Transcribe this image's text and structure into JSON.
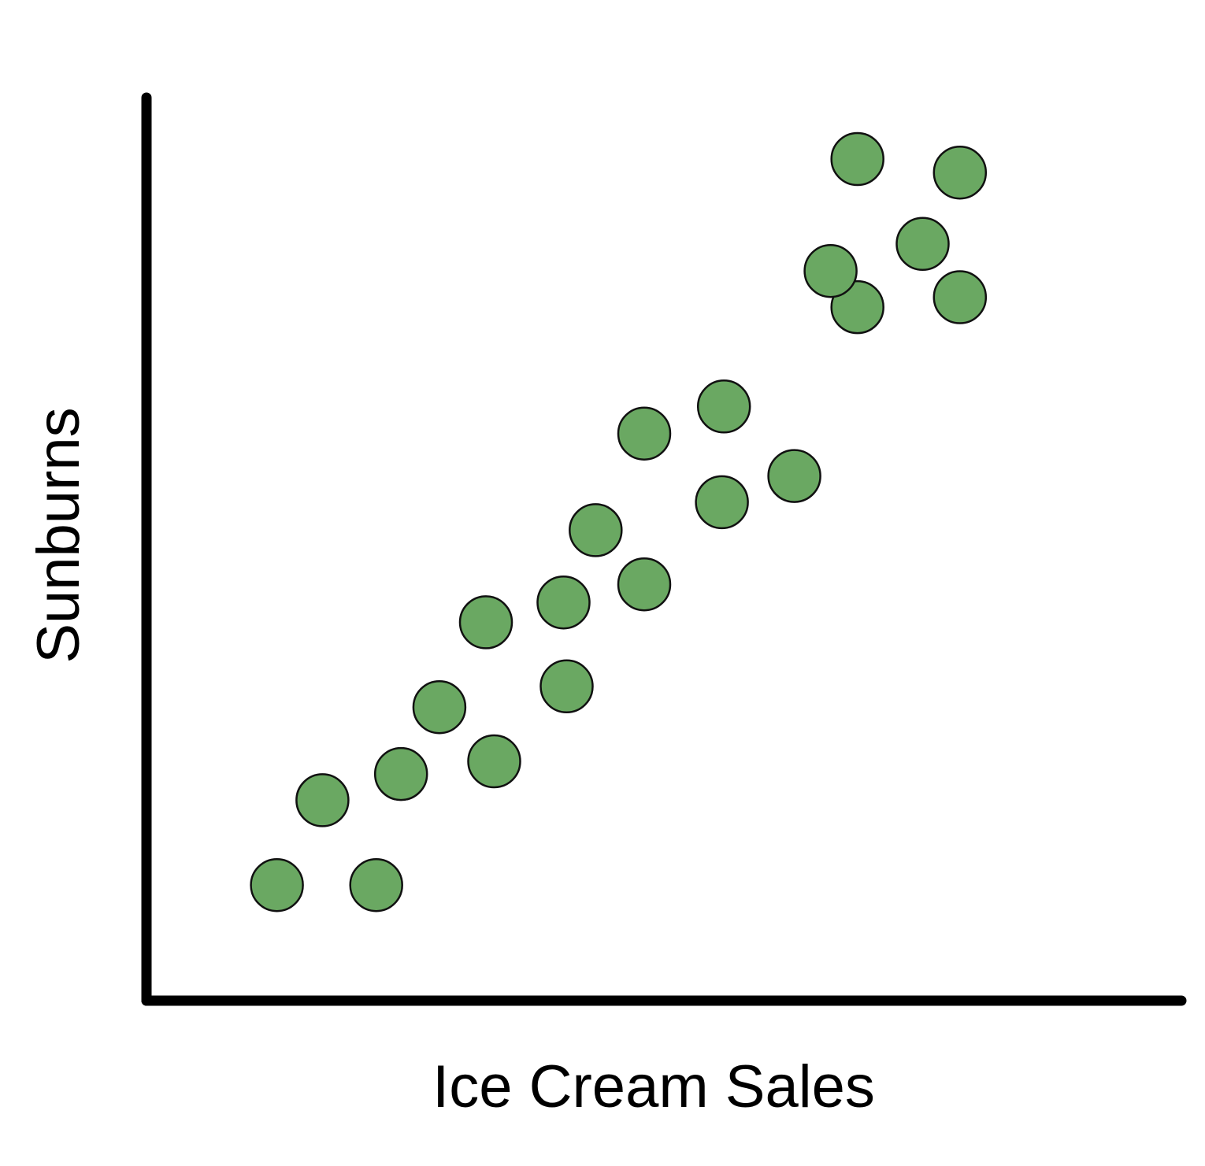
{
  "chart_data": {
    "type": "scatter",
    "title": "",
    "xlabel": "Ice Cream Sales",
    "ylabel": "Sunburns",
    "xlim": [
      0,
      100
    ],
    "ylim": [
      0,
      100
    ],
    "grid": false,
    "ticks": false,
    "point_color": "#6aa862",
    "axis_color": "#000000",
    "series": [
      {
        "points": [
          {
            "x": 12.6,
            "y": 12.8
          },
          {
            "x": 22.2,
            "y": 12.8
          },
          {
            "x": 17.0,
            "y": 22.2
          },
          {
            "x": 24.6,
            "y": 25.1
          },
          {
            "x": 28.3,
            "y": 32.5
          },
          {
            "x": 33.6,
            "y": 26.5
          },
          {
            "x": 32.8,
            "y": 41.9
          },
          {
            "x": 40.6,
            "y": 34.8
          },
          {
            "x": 40.3,
            "y": 44.1
          },
          {
            "x": 43.4,
            "y": 52.1
          },
          {
            "x": 48.1,
            "y": 46.1
          },
          {
            "x": 48.1,
            "y": 62.8
          },
          {
            "x": 55.6,
            "y": 55.2
          },
          {
            "x": 55.8,
            "y": 65.8
          },
          {
            "x": 62.6,
            "y": 58.1
          },
          {
            "x": 68.7,
            "y": 76.8
          },
          {
            "x": 66.1,
            "y": 80.8
          },
          {
            "x": 68.7,
            "y": 93.2
          },
          {
            "x": 75.0,
            "y": 83.8
          },
          {
            "x": 78.6,
            "y": 77.9
          },
          {
            "x": 78.6,
            "y": 91.7
          }
        ]
      }
    ]
  }
}
